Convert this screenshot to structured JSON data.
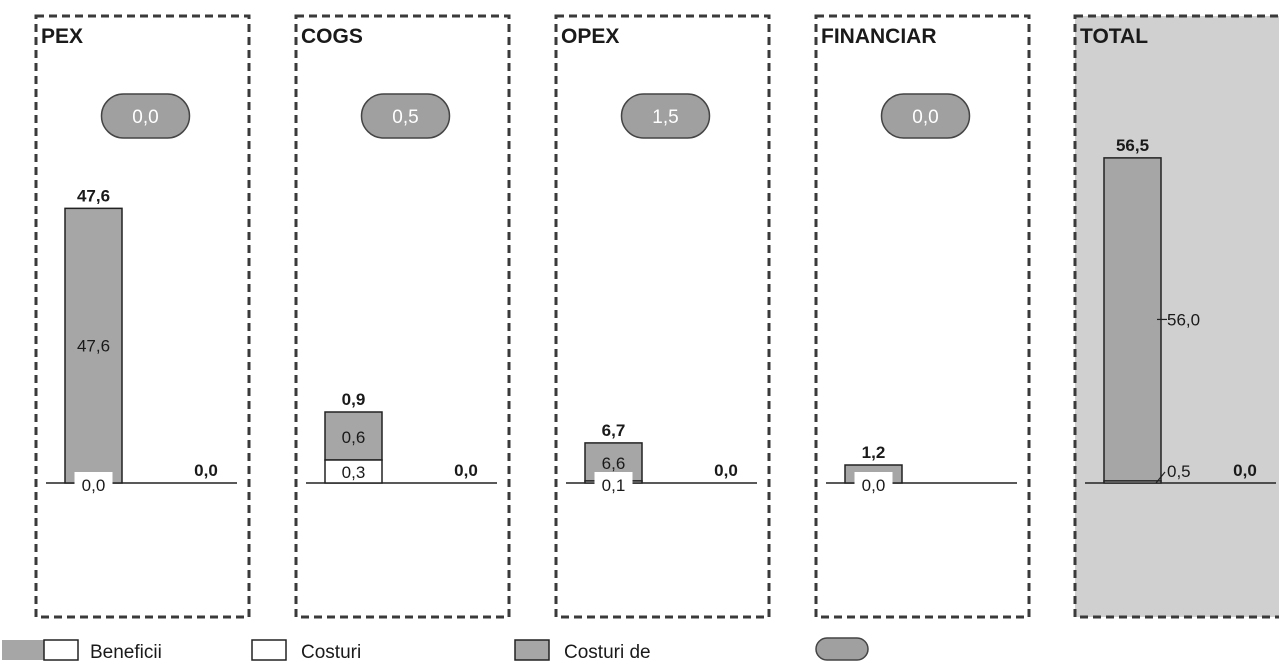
{
  "chart_data": {
    "type": "bar",
    "stacked": true,
    "colors": {
      "benefit": "#ffffff",
      "cost": "#a6a6a6",
      "pill": "#a0a0a0",
      "total_panel": "#d0d0d0",
      "border": "#3a3a3a"
    },
    "panels": [
      {
        "title": "PEX",
        "pill": "0,0",
        "bar": {
          "benefit": 0.0,
          "benefit_label": "0,0",
          "cost": 47.6,
          "cost_label": "47,6",
          "total_label": "47,6"
        },
        "right_label": "0,0",
        "shaded": false
      },
      {
        "title": "COGS",
        "pill": "0,5",
        "bar": {
          "benefit": 0.3,
          "benefit_label": "0,3",
          "cost": 0.6,
          "cost_label": "0,6",
          "total_label": "0,9"
        },
        "right_label": "0,0",
        "shaded": false
      },
      {
        "title": "OPEX",
        "pill": "1,5",
        "bar": {
          "benefit": 0.1,
          "benefit_label": "0,1",
          "cost": 6.6,
          "cost_label": "6,6",
          "total_label": "6,7"
        },
        "right_label": "0,0",
        "shaded": false
      },
      {
        "title": "FINANCIAR",
        "pill": "0,0",
        "bar": {
          "benefit": 0.0,
          "benefit_label": "0,0",
          "cost": 1.2,
          "cost_label": "",
          "total_label": "1,2"
        },
        "right_label": "",
        "shaded": false
      },
      {
        "title": "TOTAL",
        "pill": "",
        "bar": {
          "benefit": 0.5,
          "benefit_label": "0,5",
          "cost": 56.0,
          "cost_label": "56,0",
          "total_label": "56,5"
        },
        "right_label": "0,0",
        "shaded": true
      }
    ],
    "legend": [
      {
        "swatch": "benefit-cost",
        "label": "Beneficii"
      },
      {
        "swatch": "white",
        "label": "Costuri"
      },
      {
        "swatch": "grey",
        "label": "Costuri de"
      },
      {
        "swatch": "pill",
        "label": ""
      }
    ]
  }
}
